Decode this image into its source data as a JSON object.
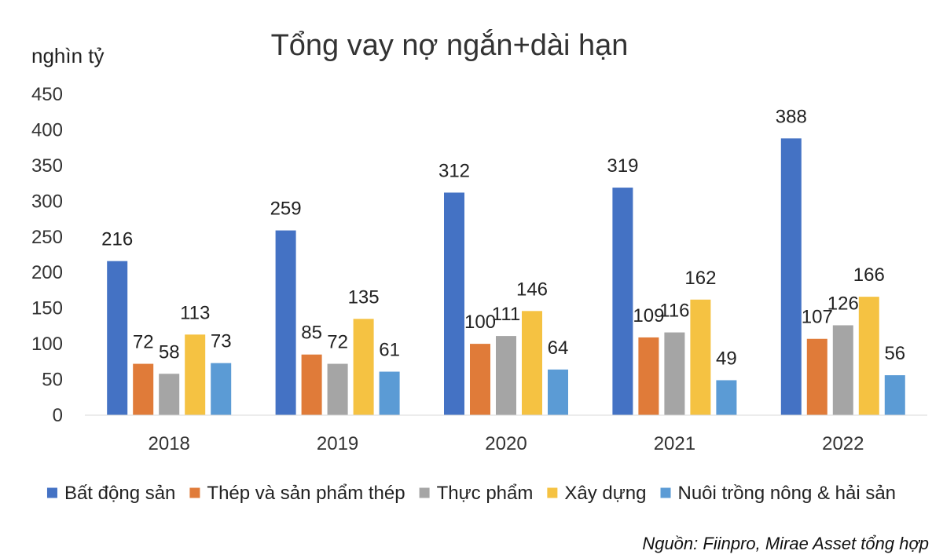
{
  "chart_data": {
    "type": "bar",
    "title": "Tổng vay nợ ngắn+dài hạn",
    "ylabel": "nghìn tỷ",
    "xlabel": "",
    "categories": [
      "2018",
      "2019",
      "2020",
      "2021",
      "2022"
    ],
    "ylim": [
      0,
      450
    ],
    "yticks": [
      0,
      50,
      100,
      150,
      200,
      250,
      300,
      350,
      400,
      450
    ],
    "grid": false,
    "legend_position": "bottom",
    "data_labels": true,
    "series": [
      {
        "name": "Bất động sản",
        "color": "#4472C4",
        "values": [
          216,
          259,
          312,
          319,
          388
        ]
      },
      {
        "name": "Thép và sản phẩm thép",
        "color": "#E07B39",
        "values": [
          72,
          85,
          100,
          109,
          107
        ]
      },
      {
        "name": "Thực phẩm",
        "color": "#A5A5A5",
        "values": [
          58,
          72,
          111,
          116,
          126
        ]
      },
      {
        "name": "Xây dựng",
        "color": "#F5C242",
        "values": [
          113,
          135,
          146,
          162,
          166
        ]
      },
      {
        "name": "Nuôi trồng nông & hải sản",
        "color": "#5B9BD5",
        "values": [
          73,
          61,
          64,
          49,
          56
        ]
      }
    ],
    "source": "Nguồn: Fiinpro, Mirae Asset tổng hợp"
  }
}
